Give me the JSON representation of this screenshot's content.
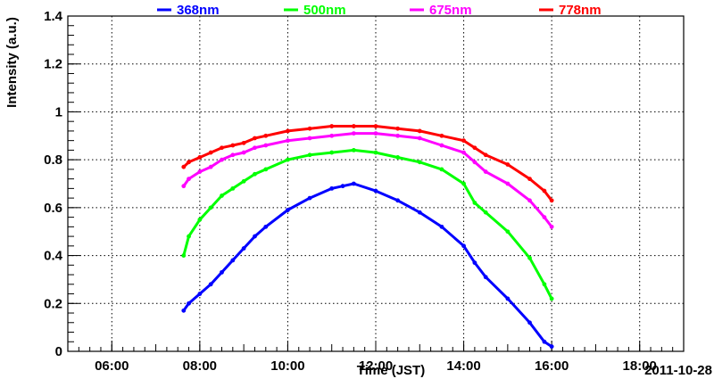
{
  "chart_data": {
    "type": "scatter",
    "title": "",
    "xlabel": "Time (JST)",
    "ylabel": "Intensity (a.u.)",
    "date_label": "2011-10-28",
    "xlim_hours": [
      5.0,
      19.0
    ],
    "ylim": [
      0,
      1.4
    ],
    "x_ticks": [
      {
        "h": 6,
        "label": "06:00"
      },
      {
        "h": 8,
        "label": "08:00"
      },
      {
        "h": 10,
        "label": "10:00"
      },
      {
        "h": 12,
        "label": "12:00"
      },
      {
        "h": 14,
        "label": "14:00"
      },
      {
        "h": 16,
        "label": "16:00"
      },
      {
        "h": 18,
        "label": "18:00"
      }
    ],
    "y_ticks": [
      {
        "v": 0,
        "label": "0"
      },
      {
        "v": 0.2,
        "label": "0.2"
      },
      {
        "v": 0.4,
        "label": "0.4"
      },
      {
        "v": 0.6,
        "label": "0.6"
      },
      {
        "v": 0.8,
        "label": "0.8"
      },
      {
        "v": 1.0,
        "label": "1"
      },
      {
        "v": 1.2,
        "label": "1.2"
      },
      {
        "v": 1.4,
        "label": "1.4"
      }
    ],
    "grid": true,
    "legend_position": "top",
    "series": [
      {
        "name": "368nm",
        "color": "#0000ff",
        "x": [
          "07:38",
          "07:45",
          "08:00",
          "08:15",
          "08:30",
          "08:45",
          "09:00",
          "09:15",
          "09:30",
          "10:00",
          "10:30",
          "11:00",
          "11:15",
          "11:30",
          "12:00",
          "12:30",
          "13:00",
          "13:30",
          "14:00",
          "14:15",
          "14:30",
          "15:00",
          "15:30",
          "15:50",
          "16:00"
        ],
        "y": [
          0.17,
          0.2,
          0.24,
          0.28,
          0.33,
          0.38,
          0.43,
          0.48,
          0.52,
          0.59,
          0.64,
          0.68,
          0.69,
          0.7,
          0.67,
          0.63,
          0.58,
          0.52,
          0.44,
          0.37,
          0.31,
          0.22,
          0.12,
          0.04,
          0.02
        ]
      },
      {
        "name": "500nm",
        "color": "#00ff00",
        "x": [
          "07:38",
          "07:45",
          "08:00",
          "08:15",
          "08:30",
          "08:45",
          "09:00",
          "09:15",
          "09:30",
          "10:00",
          "10:30",
          "11:00",
          "11:30",
          "12:00",
          "12:30",
          "13:00",
          "13:30",
          "14:00",
          "14:15",
          "14:30",
          "15:00",
          "15:30",
          "15:50",
          "16:00"
        ],
        "y": [
          0.4,
          0.48,
          0.55,
          0.6,
          0.65,
          0.68,
          0.71,
          0.74,
          0.76,
          0.8,
          0.82,
          0.83,
          0.84,
          0.83,
          0.81,
          0.79,
          0.76,
          0.7,
          0.62,
          0.58,
          0.5,
          0.39,
          0.28,
          0.22
        ]
      },
      {
        "name": "675nm",
        "color": "#ff00ff",
        "x": [
          "07:38",
          "07:45",
          "08:00",
          "08:15",
          "08:30",
          "08:45",
          "09:00",
          "09:15",
          "09:30",
          "10:00",
          "10:30",
          "11:00",
          "11:30",
          "12:00",
          "12:30",
          "13:00",
          "13:30",
          "14:00",
          "14:15",
          "14:30",
          "15:00",
          "15:30",
          "15:50",
          "16:00"
        ],
        "y": [
          0.69,
          0.72,
          0.75,
          0.77,
          0.8,
          0.82,
          0.83,
          0.85,
          0.86,
          0.88,
          0.89,
          0.9,
          0.91,
          0.91,
          0.9,
          0.89,
          0.86,
          0.83,
          0.79,
          0.75,
          0.7,
          0.63,
          0.56,
          0.52
        ]
      },
      {
        "name": "778nm",
        "color": "#ff0000",
        "x": [
          "07:38",
          "07:45",
          "08:00",
          "08:15",
          "08:30",
          "08:45",
          "09:00",
          "09:15",
          "09:30",
          "10:00",
          "10:30",
          "11:00",
          "11:30",
          "12:00",
          "12:30",
          "13:00",
          "13:30",
          "14:00",
          "14:15",
          "14:30",
          "15:00",
          "15:30",
          "15:50",
          "16:00"
        ],
        "y": [
          0.77,
          0.79,
          0.81,
          0.83,
          0.85,
          0.86,
          0.87,
          0.89,
          0.9,
          0.92,
          0.93,
          0.94,
          0.94,
          0.94,
          0.93,
          0.92,
          0.9,
          0.88,
          0.85,
          0.82,
          0.78,
          0.72,
          0.67,
          0.63
        ]
      }
    ]
  }
}
